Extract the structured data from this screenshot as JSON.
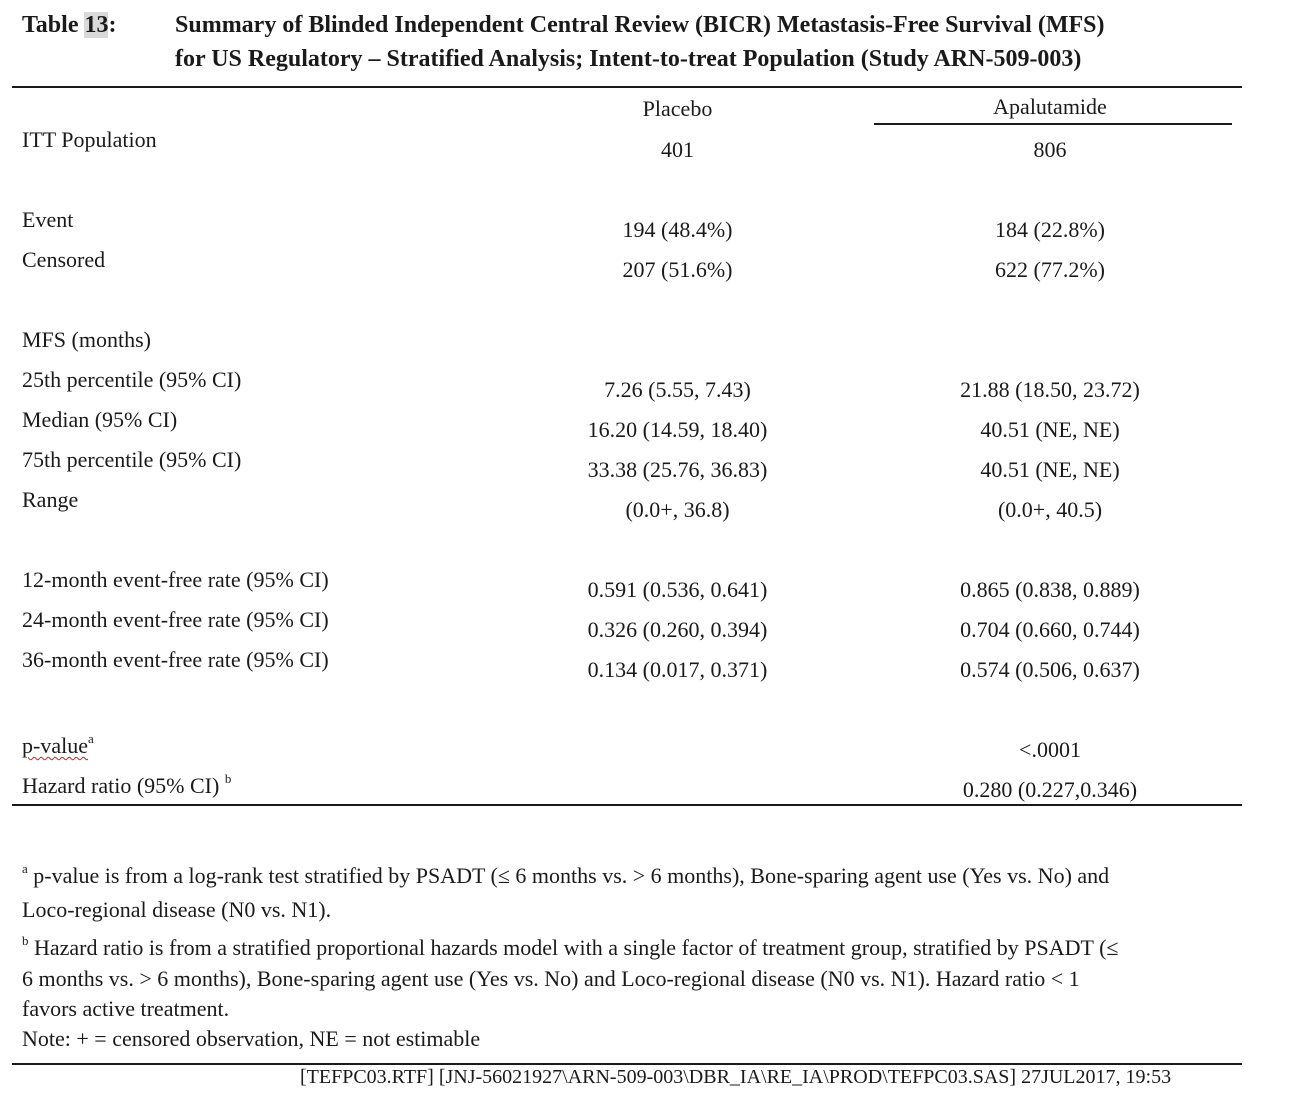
{
  "title": {
    "label_prefix": "Table ",
    "label_number": "13",
    "label_suffix": ":",
    "line1": "Summary of Blinded Independent Central Review (BICR) Metastasis-Free Survival (MFS)",
    "line2": "for US Regulatory – Stratified Analysis; Intent-to-treat Population (Study ARN-509-003)"
  },
  "columns": {
    "placebo": "Placebo",
    "apalutamide": "Apalutamide"
  },
  "rows": {
    "itt": {
      "label": "ITT Population",
      "placebo": "401",
      "apalutamide": "806"
    },
    "event": {
      "label": "Event",
      "placebo": "194 (48.4%)",
      "apalutamide": "184 (22.8%)"
    },
    "censored": {
      "label": "Censored",
      "placebo": "207 (51.6%)",
      "apalutamide": "622 (77.2%)"
    },
    "mfs_header": {
      "label": "MFS (months)"
    },
    "p25": {
      "label": "25th percentile (95% CI)",
      "placebo": "7.26 (5.55, 7.43)",
      "apalutamide": "21.88 (18.50, 23.72)"
    },
    "median": {
      "label": "Median (95% CI)",
      "placebo": "16.20 (14.59, 18.40)",
      "apalutamide": "40.51 (NE, NE)"
    },
    "p75": {
      "label": "75th percentile (95% CI)",
      "placebo": "33.38 (25.76, 36.83)",
      "apalutamide": "40.51 (NE, NE)"
    },
    "range": {
      "label": "Range",
      "placebo": "(0.0+, 36.8)",
      "apalutamide": "(0.0+, 40.5)"
    },
    "efr12": {
      "label": "12-month event-free rate (95% CI)",
      "placebo": "0.591 (0.536, 0.641)",
      "apalutamide": "0.865 (0.838, 0.889)"
    },
    "efr24": {
      "label": "24-month event-free rate (95% CI)",
      "placebo": "0.326 (0.260, 0.394)",
      "apalutamide": "0.704 (0.660, 0.744)"
    },
    "efr36": {
      "label": "36-month event-free rate (95% CI)",
      "placebo": "0.134 (0.017, 0.371)",
      "apalutamide": "0.574 (0.506, 0.637)"
    },
    "pvalue": {
      "label": "p-value",
      "sup": "a",
      "apalutamide": "<.0001"
    },
    "hr": {
      "label": "Hazard ratio (95% CI) ",
      "sup": "b",
      "apalutamide": "0.280 (0.227,0.346)"
    }
  },
  "footnotes": {
    "a_marker": "a",
    "a_line1": " p-value is from a log-rank test stratified by PSADT (≤ 6 months vs. > 6 months), Bone-sparing agent use (Yes vs. No) and",
    "a_line2": "Loco-regional disease (N0 vs. N1).",
    "b_marker": "b",
    "b_line1": " Hazard ratio is from a stratified proportional hazards model with a single factor of treatment group, stratified by PSADT (≤",
    "b_line2": "6 months vs. > 6 months), Bone-sparing agent use (Yes vs. No) and Loco-regional disease (N0 vs. N1). Hazard ratio < 1",
    "b_line3": "favors active treatment.",
    "note": "Note: + = censored observation, NE = not estimable"
  },
  "source": "[TEFPC03.RTF] [JNJ-56021927\\ARN-509-003\\DBR_IA\\RE_IA\\PROD\\TEFPC03.SAS] 27JUL2017, 19:53"
}
